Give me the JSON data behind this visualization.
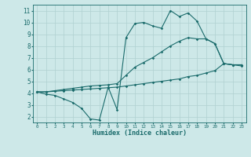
{
  "xlabel": "Humidex (Indice chaleur)",
  "bg_color": "#cde8e8",
  "grid_color": "#b0d0d0",
  "line_color": "#1a6b6b",
  "xlim": [
    -0.5,
    23.5
  ],
  "ylim": [
    1.5,
    11.5
  ],
  "xticks": [
    0,
    1,
    2,
    3,
    4,
    5,
    6,
    7,
    8,
    9,
    10,
    11,
    12,
    13,
    14,
    15,
    16,
    17,
    18,
    19,
    20,
    21,
    22,
    23
  ],
  "yticks": [
    2,
    3,
    4,
    5,
    6,
    7,
    8,
    9,
    10,
    11
  ],
  "line1_x": [
    0,
    1,
    2,
    3,
    4,
    5,
    6,
    7,
    8,
    9,
    10,
    11,
    12,
    13,
    14,
    15,
    16,
    17,
    18,
    19,
    20,
    21,
    22,
    23
  ],
  "line1_y": [
    4.1,
    3.9,
    3.8,
    3.5,
    3.2,
    2.7,
    1.8,
    1.7,
    4.5,
    2.6,
    8.7,
    9.9,
    10.0,
    9.7,
    9.5,
    11.0,
    10.5,
    10.8,
    10.1,
    8.6,
    8.2,
    6.5,
    6.4,
    6.4
  ],
  "line2_x": [
    0,
    1,
    2,
    3,
    4,
    5,
    6,
    7,
    8,
    9,
    10,
    11,
    12,
    13,
    14,
    15,
    16,
    17,
    18,
    19,
    20,
    21,
    22,
    23
  ],
  "line2_y": [
    4.1,
    4.1,
    4.15,
    4.2,
    4.25,
    4.3,
    4.35,
    4.4,
    4.45,
    4.5,
    4.6,
    4.7,
    4.8,
    4.9,
    5.0,
    5.1,
    5.2,
    5.4,
    5.5,
    5.7,
    5.9,
    6.5,
    6.4,
    6.3
  ],
  "line3_x": [
    0,
    1,
    2,
    3,
    4,
    5,
    6,
    7,
    8,
    9,
    10,
    11,
    12,
    13,
    14,
    15,
    16,
    17,
    18,
    19,
    20,
    21,
    22,
    23
  ],
  "line3_y": [
    4.1,
    4.1,
    4.2,
    4.3,
    4.4,
    4.5,
    4.6,
    4.65,
    4.7,
    4.8,
    5.5,
    6.2,
    6.6,
    7.0,
    7.5,
    8.0,
    8.4,
    8.7,
    8.6,
    8.6,
    8.2,
    6.5,
    6.4,
    6.4
  ]
}
